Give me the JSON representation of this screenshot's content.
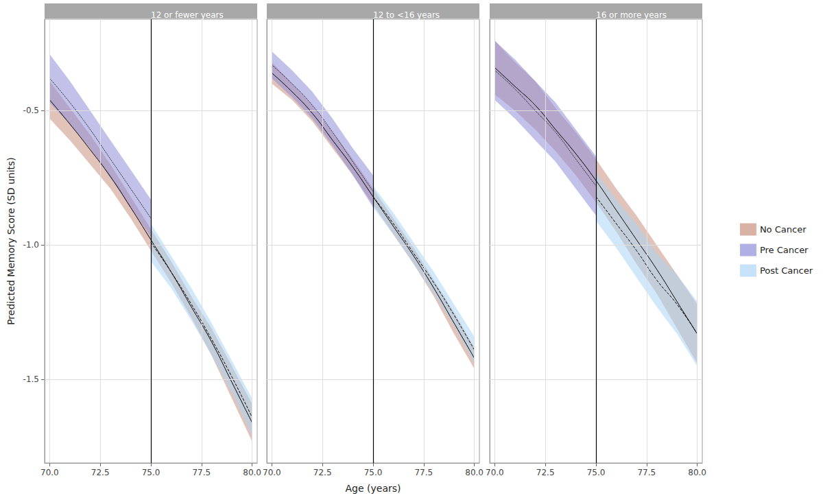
{
  "chart_data": {
    "type": "line",
    "x_label": "Age (years)",
    "y_label": "Predicted Memory Score (SD units)",
    "x": [
      70,
      71,
      72,
      73,
      74,
      75,
      76,
      77,
      78,
      79,
      80
    ],
    "xlim": [
      69.75,
      80.25
    ],
    "xticks": [
      {
        "value": 70,
        "label": "70.0"
      },
      72.5,
      {
        "value": 75,
        "label": "75.0"
      },
      77.5,
      {
        "value": 80,
        "label": "80.0"
      }
    ],
    "ylim": [
      -1.81,
      -0.16
    ],
    "yticks": [
      -1.5,
      {
        "value": -1,
        "label": "-1.0"
      },
      -0.5
    ],
    "grid": true,
    "legend": "right",
    "vline": 75,
    "panels": [
      {
        "title": "12 or fewer years",
        "series": [
          {
            "name": "No Cancer",
            "color": "#c8917f",
            "line_style": "solid",
            "values": [
              -0.46,
              -0.55,
              -0.645,
              -0.745,
              -0.86,
              -0.98,
              -1.1,
              -1.23,
              -1.36,
              -1.51,
              -1.66
            ],
            "lower": [
              -0.53,
              -0.61,
              -0.7,
              -0.79,
              -0.9,
              -1.02,
              -1.14,
              -1.27,
              -1.41,
              -1.57,
              -1.73
            ],
            "upper": [
              -0.39,
              -0.49,
              -0.59,
              -0.7,
              -0.82,
              -0.94,
              -1.06,
              -1.19,
              -1.31,
              -1.45,
              -1.59
            ]
          },
          {
            "name": "Pre Cancer",
            "color": "#8e8ed8",
            "line_style": "dotted",
            "values": [
              -0.38,
              -0.47,
              -0.57,
              -0.68,
              -0.79,
              -0.9,
              null,
              null,
              null,
              null,
              null
            ],
            "lower": [
              -0.47,
              -0.55,
              -0.64,
              -0.75,
              -0.86,
              -0.97,
              null,
              null,
              null,
              null,
              null
            ],
            "upper": [
              -0.29,
              -0.39,
              -0.5,
              -0.61,
              -0.72,
              -0.83,
              null,
              null,
              null,
              null,
              null
            ]
          },
          {
            "name": "Post Cancer",
            "color": "#acd5f5",
            "line_style": "dashed",
            "values": [
              null,
              null,
              null,
              null,
              null,
              -0.99,
              -1.1,
              -1.22,
              -1.35,
              -1.49,
              -1.64
            ],
            "lower": [
              null,
              null,
              null,
              null,
              null,
              -1.06,
              -1.16,
              -1.28,
              -1.41,
              -1.55,
              -1.71
            ],
            "upper": [
              null,
              null,
              null,
              null,
              null,
              -0.92,
              -1.04,
              -1.16,
              -1.29,
              -1.43,
              -1.57
            ]
          }
        ]
      },
      {
        "title": "12 to <16 years",
        "series": [
          {
            "name": "No Cancer",
            "color": "#c8917f",
            "line_style": "solid",
            "values": [
              -0.36,
              -0.43,
              -0.51,
              -0.61,
              -0.71,
              -0.82,
              -0.93,
              -1.04,
              -1.16,
              -1.29,
              -1.42
            ],
            "lower": [
              -0.4,
              -0.46,
              -0.54,
              -0.64,
              -0.74,
              -0.85,
              -0.96,
              -1.07,
              -1.19,
              -1.33,
              -1.46
            ],
            "upper": [
              -0.32,
              -0.4,
              -0.48,
              -0.58,
              -0.68,
              -0.79,
              -0.9,
              -1.01,
              -1.13,
              -1.25,
              -1.38
            ]
          },
          {
            "name": "Pre Cancer",
            "color": "#8e8ed8",
            "line_style": "dotted",
            "values": [
              -0.33,
              -0.4,
              -0.48,
              -0.58,
              -0.69,
              -0.8,
              null,
              null,
              null,
              null,
              null
            ],
            "lower": [
              -0.38,
              -0.45,
              -0.53,
              -0.63,
              -0.74,
              -0.86,
              null,
              null,
              null,
              null,
              null
            ],
            "upper": [
              -0.28,
              -0.35,
              -0.43,
              -0.53,
              -0.64,
              -0.74,
              null,
              null,
              null,
              null,
              null
            ]
          },
          {
            "name": "Post Cancer",
            "color": "#acd5f5",
            "line_style": "dashed",
            "values": [
              null,
              null,
              null,
              null,
              null,
              -0.82,
              -0.92,
              -1.03,
              -1.14,
              -1.26,
              -1.39
            ],
            "lower": [
              null,
              null,
              null,
              null,
              null,
              -0.86,
              -0.96,
              -1.07,
              -1.18,
              -1.3,
              -1.44
            ],
            "upper": [
              null,
              null,
              null,
              null,
              null,
              -0.78,
              -0.88,
              -0.99,
              -1.1,
              -1.22,
              -1.34
            ]
          }
        ]
      },
      {
        "title": "16 or more years",
        "series": [
          {
            "name": "No Cancer",
            "color": "#c8917f",
            "line_style": "solid",
            "values": [
              -0.34,
              -0.41,
              -0.48,
              -0.57,
              -0.66,
              -0.76,
              -0.87,
              -0.98,
              -1.09,
              -1.21,
              -1.33
            ],
            "lower": [
              -0.44,
              -0.5,
              -0.57,
              -0.65,
              -0.74,
              -0.84,
              -0.95,
              -1.07,
              -1.18,
              -1.31,
              -1.44
            ],
            "upper": [
              -0.24,
              -0.32,
              -0.39,
              -0.49,
              -0.58,
              -0.68,
              -0.79,
              -0.89,
              -1.0,
              -1.11,
              -1.22
            ]
          },
          {
            "name": "Pre Cancer",
            "color": "#8e8ed8",
            "line_style": "dotted",
            "values": [
              -0.35,
              -0.42,
              -0.5,
              -0.58,
              -0.68,
              -0.78,
              null,
              null,
              null,
              null,
              null
            ],
            "lower": [
              -0.46,
              -0.53,
              -0.61,
              -0.69,
              -0.79,
              -0.89,
              null,
              null,
              null,
              null,
              null
            ],
            "upper": [
              -0.24,
              -0.31,
              -0.39,
              -0.47,
              -0.57,
              -0.67,
              null,
              null,
              null,
              null,
              null
            ]
          },
          {
            "name": "Post Cancer",
            "color": "#acd5f5",
            "line_style": "dashed",
            "values": [
              null,
              null,
              null,
              null,
              null,
              -0.82,
              -0.92,
              -1.02,
              -1.13,
              -1.22,
              -1.33
            ],
            "lower": [
              null,
              null,
              null,
              null,
              null,
              -0.91,
              -1.01,
              -1.12,
              -1.23,
              -1.33,
              -1.45
            ],
            "upper": [
              null,
              null,
              null,
              null,
              null,
              -0.73,
              -0.83,
              -0.92,
              -1.03,
              -1.11,
              -1.21
            ]
          }
        ]
      }
    ]
  }
}
